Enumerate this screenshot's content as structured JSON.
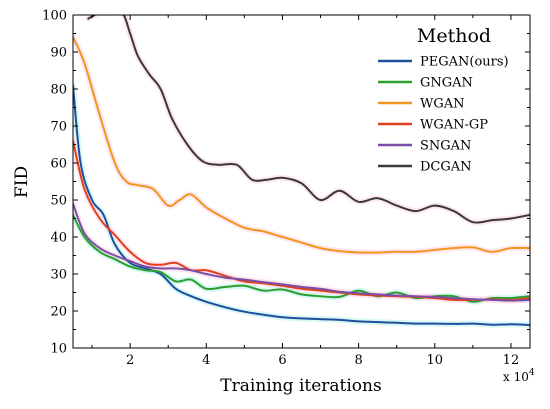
{
  "chart_data": {
    "type": "line",
    "xlabel": "Training iterations",
    "ylabel": "FID",
    "x_multiplier_label": "x 10",
    "x_multiplier_exp": "4",
    "xlim": [
      0.5,
      12.5
    ],
    "ylim": [
      10,
      100
    ],
    "xticks": [
      2,
      4,
      6,
      8,
      10,
      12
    ],
    "xtick_labels": [
      "2",
      "4",
      "6",
      "8",
      "10",
      "12"
    ],
    "yticks": [
      10,
      20,
      30,
      40,
      50,
      60,
      70,
      80,
      90,
      100
    ],
    "ytick_labels": [
      "10",
      "20",
      "30",
      "40",
      "50",
      "60",
      "70",
      "80",
      "90",
      "100"
    ],
    "grid": false,
    "legend": {
      "title": "Method",
      "position": "top-right"
    },
    "series": [
      {
        "name": "PEGAN(ours)",
        "color": "#1f4e9c",
        "band": "#b8f0ec",
        "x": [
          0.5,
          0.7,
          1.0,
          1.3,
          1.6,
          2.0,
          2.4,
          2.8,
          3.2,
          3.6,
          4.0,
          4.5,
          5.0,
          5.5,
          6.0,
          6.5,
          7.0,
          7.5,
          8.0,
          8.5,
          9.0,
          9.5,
          10.0,
          10.5,
          11.0,
          11.5,
          12.0,
          12.5
        ],
        "y": [
          81,
          60,
          50,
          46,
          38,
          33,
          31.5,
          30,
          26,
          24,
          22.5,
          21,
          19.8,
          19,
          18.3,
          18,
          17.8,
          17.6,
          17.2,
          17,
          16.8,
          16.6,
          16.6,
          16.5,
          16.6,
          16.3,
          16.4,
          16.2
        ]
      },
      {
        "name": "GNGAN",
        "color": "#2ca02c",
        "band": "#b8f0ec",
        "x": [
          0.5,
          0.8,
          1.2,
          1.6,
          2.0,
          2.4,
          2.8,
          3.2,
          3.6,
          4.0,
          4.5,
          5.0,
          5.5,
          6.0,
          6.5,
          7.0,
          7.5,
          8.0,
          8.5,
          9.0,
          9.5,
          10.0,
          10.5,
          11.0,
          11.5,
          12.0,
          12.5
        ],
        "y": [
          46,
          40,
          36,
          34,
          32,
          31,
          30.5,
          28,
          28.5,
          26,
          26.5,
          26.8,
          25.5,
          25.8,
          24.5,
          24,
          23.8,
          25.5,
          24,
          25,
          23.5,
          24,
          24,
          22.5,
          23.5,
          23.5,
          24
        ]
      },
      {
        "name": "WGAN",
        "color": "#f0961e",
        "band": "#ffd4e6",
        "x": [
          0.5,
          0.8,
          1.2,
          1.6,
          1.9,
          2.2,
          2.6,
          3.0,
          3.3,
          3.6,
          4.0,
          4.5,
          5.0,
          5.5,
          6.0,
          6.5,
          7.0,
          7.5,
          8.0,
          8.5,
          9.0,
          9.5,
          10.0,
          10.5,
          11.0,
          11.5,
          12.0,
          12.5
        ],
        "y": [
          94,
          87,
          73,
          60,
          55,
          54,
          53,
          48.5,
          50,
          51.5,
          48,
          45,
          42.5,
          41.5,
          40,
          38.5,
          37,
          36.2,
          35.8,
          35.8,
          36,
          36,
          36.5,
          37,
          37.2,
          36,
          37,
          37
        ]
      },
      {
        "name": "WGAN-GP",
        "color": "#e0401c",
        "band": "#ffd4e6",
        "x": [
          0.5,
          0.8,
          1.2,
          1.6,
          2.0,
          2.4,
          2.8,
          3.2,
          3.6,
          4.0,
          4.5,
          5.0,
          5.5,
          6.0,
          6.5,
          7.0,
          7.5,
          8.0,
          8.5,
          9.0,
          9.5,
          10.0,
          10.5,
          11.0,
          11.5,
          12.0,
          12.5
        ],
        "y": [
          66,
          53,
          45,
          40.5,
          36,
          33,
          32.5,
          33,
          31,
          31,
          29.5,
          28,
          27.5,
          26.8,
          26,
          25.5,
          25,
          24.5,
          24.2,
          24,
          23.8,
          23.5,
          23,
          23,
          23.2,
          23,
          23.5
        ]
      },
      {
        "name": "SNGAN",
        "color": "#7a4fa8",
        "band": "#ffd4e6",
        "x": [
          0.5,
          0.8,
          1.2,
          1.6,
          2.0,
          2.4,
          2.8,
          3.2,
          3.6,
          4.0,
          4.5,
          5.0,
          5.5,
          6.0,
          6.5,
          7.0,
          7.5,
          8.0,
          8.5,
          9.0,
          9.5,
          10.0,
          10.5,
          11.0,
          11.5,
          12.0,
          12.5
        ],
        "y": [
          49,
          41,
          37,
          35,
          33.5,
          32,
          31.5,
          31.5,
          31,
          30,
          29,
          28.5,
          27.8,
          27.2,
          26.5,
          26,
          25.2,
          24.8,
          24.5,
          24.2,
          24,
          23.8,
          23.5,
          23.2,
          23,
          22.8,
          23
        ]
      },
      {
        "name": "DCGAN",
        "color": "#3a3a3a",
        "band": "#ffd4e6",
        "x": [
          0.9,
          1.2,
          1.5,
          1.8,
          2.0,
          2.2,
          2.5,
          2.8,
          3.1,
          3.5,
          3.9,
          4.3,
          4.8,
          5.2,
          5.6,
          6.0,
          6.5,
          7.0,
          7.5,
          8.0,
          8.5,
          9.0,
          9.5,
          10.0,
          10.5,
          11.0,
          11.5,
          12.0,
          12.5
        ],
        "y": [
          99,
          101,
          101,
          101,
          95,
          89,
          84,
          80,
          72,
          65,
          60.5,
          59.5,
          59.5,
          55.5,
          55.5,
          56,
          54.5,
          50,
          52.5,
          49.5,
          50.5,
          48.5,
          47,
          48.5,
          47,
          44,
          44.5,
          45,
          46
        ]
      }
    ]
  }
}
